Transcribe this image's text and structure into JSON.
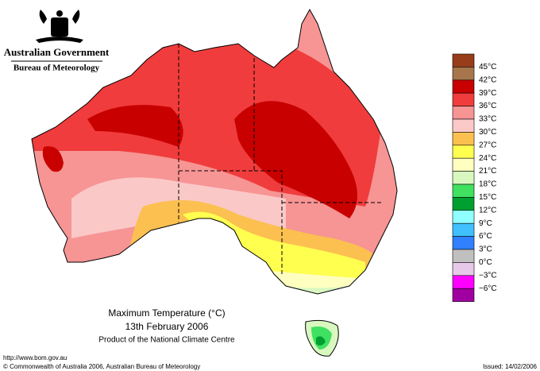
{
  "header": {
    "title": "Australian Government",
    "subtitle": "Bureau of Meteorology"
  },
  "map": {
    "title": "Maximum Temperature (°C)",
    "date": "13th February 2006",
    "credit": "Product of the National Climate Centre"
  },
  "legend": {
    "labels": [
      "45°C",
      "42°C",
      "39°C",
      "36°C",
      "33°C",
      "30°C",
      "27°C",
      "24°C",
      "21°C",
      "18°C",
      "15°C",
      "12°C",
      "9°C",
      "6°C",
      "3°C",
      "0°C",
      "−3°C",
      "−6°C"
    ],
    "colors": [
      "#983d1a",
      "#a8764c",
      "#c80000",
      "#f03c3c",
      "#f79494",
      "#fbc8c8",
      "#fbc050",
      "#ffff50",
      "#ffffc0",
      "#d8f8c0",
      "#40e060",
      "#00a030",
      "#90ffff",
      "#40c0ff",
      "#3080ff",
      "#c0c0c0",
      "#e8c8e8",
      "#ff00ff",
      "#a000a0"
    ]
  },
  "footer": {
    "url": "http://www.bom.gov.au",
    "copyright": "© Commonwealth of Australia 2006, Australian Bureau of Meteorology",
    "issued": "Issued: 14/02/2006"
  }
}
